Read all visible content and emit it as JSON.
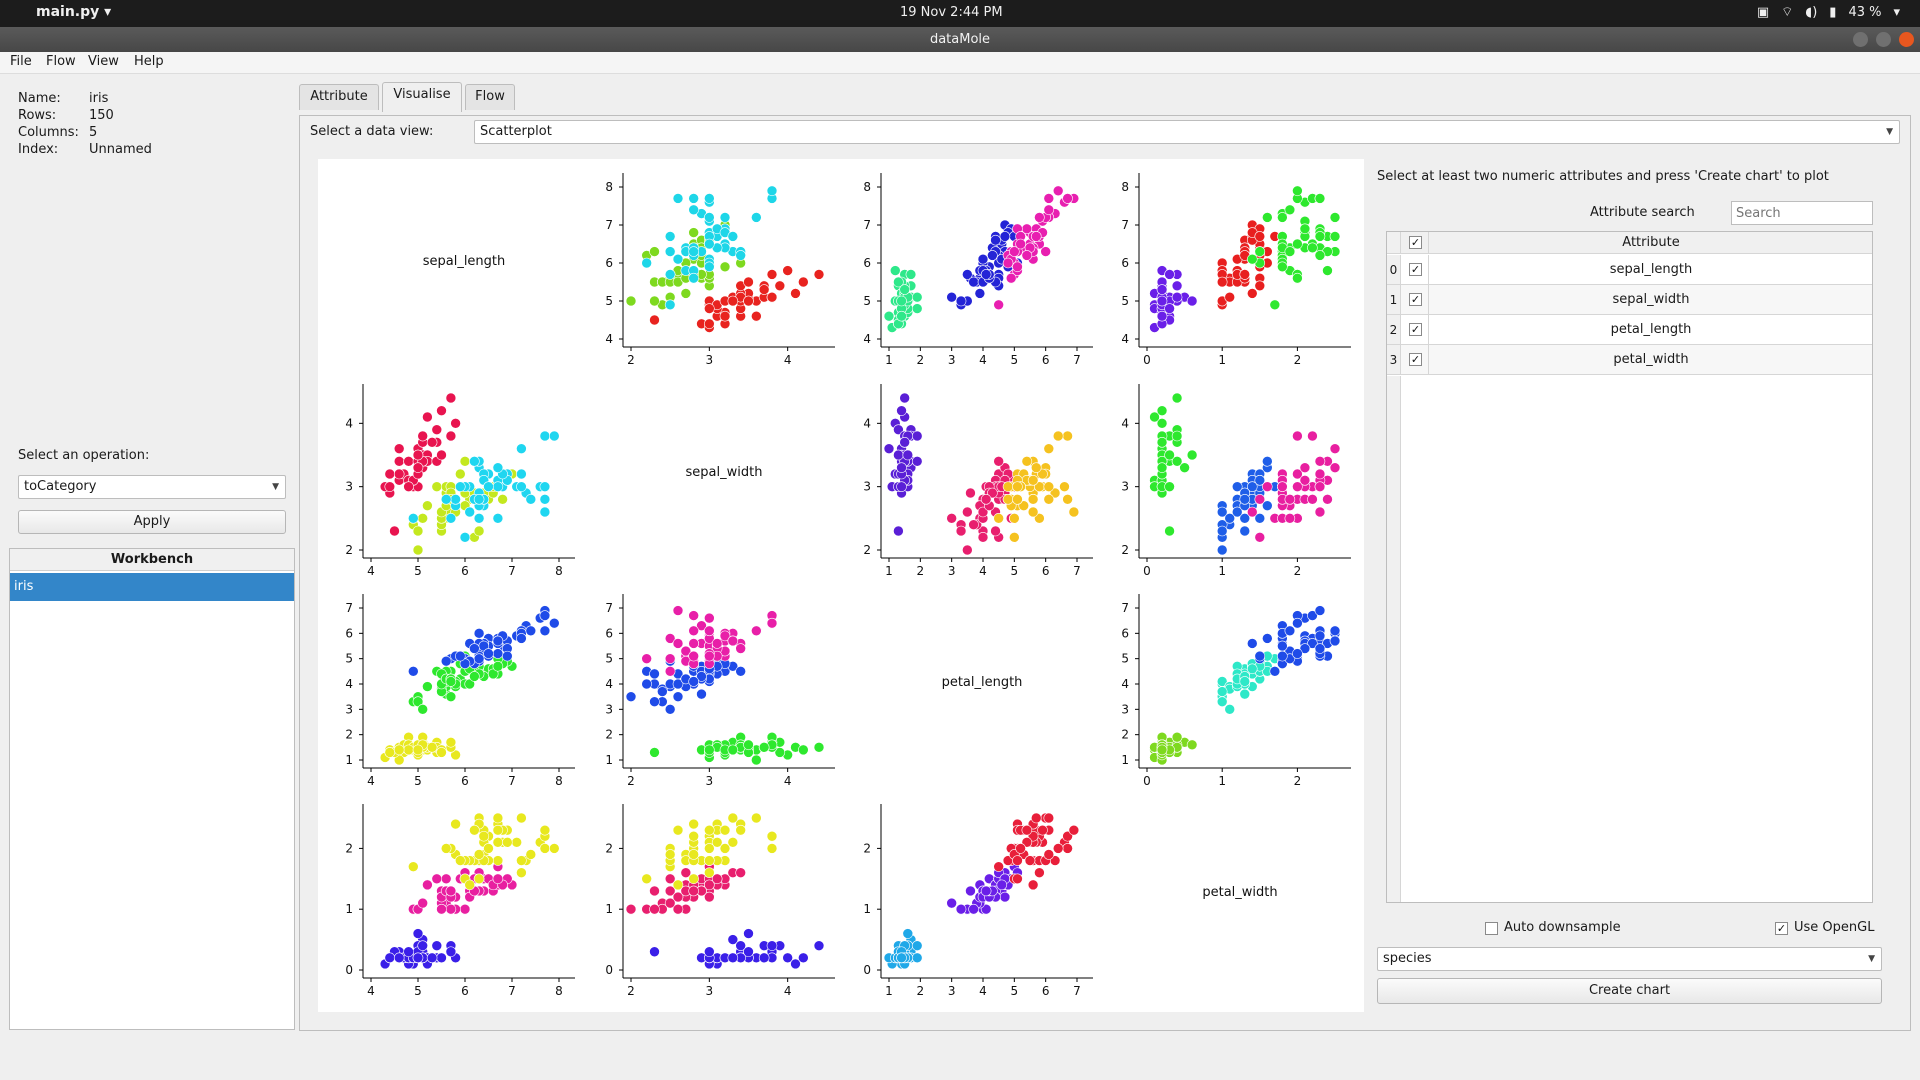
{
  "system_bar": {
    "app_name": "main.py",
    "datetime": "19 Nov  2:44 PM",
    "battery": "43 %"
  },
  "window": {
    "title": "dataMole"
  },
  "menu": [
    "File",
    "Flow",
    "View",
    "Help"
  ],
  "dataset_info": [
    {
      "key": "Name:",
      "value": "iris"
    },
    {
      "key": "Rows:",
      "value": "150"
    },
    {
      "key": "Columns:",
      "value": "5"
    },
    {
      "key": "Index:",
      "value": "Unnamed"
    }
  ],
  "operation": {
    "label": "Select an operation:",
    "selected": "toCategory",
    "apply_label": "Apply"
  },
  "workbench": {
    "title": "Workbench",
    "items": [
      "iris"
    ]
  },
  "tabs": [
    {
      "label": "Attribute",
      "active": false
    },
    {
      "label": "Visualise",
      "active": true
    },
    {
      "label": "Flow",
      "active": false
    }
  ],
  "data_view": {
    "label": "Select a data view:",
    "selected": "Scatterplot"
  },
  "right_panel": {
    "hint": "Select at least two numeric attributes and press 'Create chart' to plot",
    "search_label": "Attribute search",
    "search_placeholder": "Search",
    "table_header": "Attribute",
    "attributes": [
      {
        "index": "0",
        "name": "sepal_length",
        "checked": true
      },
      {
        "index": "1",
        "name": "sepal_width",
        "checked": true
      },
      {
        "index": "2",
        "name": "petal_length",
        "checked": true
      },
      {
        "index": "3",
        "name": "petal_width",
        "checked": true
      }
    ],
    "auto_downsample_label": "Auto downsample",
    "auto_downsample": false,
    "use_opengl_label": "Use OpenGL",
    "use_opengl": true,
    "color_by": "species",
    "create_chart_label": "Create chart"
  },
  "chart_data": {
    "type": "scatter",
    "attributes": [
      "sepal_length",
      "sepal_width",
      "petal_length",
      "petal_width"
    ],
    "color_by": "species",
    "axes": {
      "sepal_length": {
        "ticks": [
          4,
          5,
          6,
          7,
          8
        ],
        "range": [
          4,
          8
        ]
      },
      "sepal_width": {
        "ticks": [
          2,
          3,
          4
        ],
        "range": [
          2,
          4.4
        ]
      },
      "petal_length": {
        "ticks": [
          1,
          2,
          3,
          4,
          5,
          6,
          7
        ],
        "range": [
          1,
          7
        ]
      },
      "petal_width": {
        "ticks": [
          0,
          1,
          2
        ],
        "range": [
          0,
          2.5
        ]
      }
    },
    "samples": {
      "setosa": [
        [
          5.1,
          3.5,
          1.4,
          0.2
        ],
        [
          4.9,
          3.0,
          1.4,
          0.2
        ],
        [
          4.7,
          3.2,
          1.3,
          0.2
        ],
        [
          4.6,
          3.1,
          1.5,
          0.2
        ],
        [
          5.0,
          3.6,
          1.4,
          0.2
        ],
        [
          5.4,
          3.9,
          1.7,
          0.4
        ],
        [
          4.6,
          3.4,
          1.4,
          0.3
        ],
        [
          5.0,
          3.4,
          1.5,
          0.2
        ],
        [
          4.4,
          2.9,
          1.4,
          0.2
        ],
        [
          4.9,
          3.1,
          1.5,
          0.1
        ],
        [
          5.4,
          3.7,
          1.5,
          0.2
        ],
        [
          4.8,
          3.4,
          1.6,
          0.2
        ],
        [
          4.8,
          3.0,
          1.4,
          0.1
        ],
        [
          4.3,
          3.0,
          1.1,
          0.1
        ],
        [
          5.8,
          4.0,
          1.2,
          0.2
        ],
        [
          5.7,
          4.4,
          1.5,
          0.4
        ],
        [
          5.4,
          3.9,
          1.3,
          0.4
        ],
        [
          5.1,
          3.5,
          1.4,
          0.3
        ],
        [
          5.7,
          3.8,
          1.7,
          0.3
        ],
        [
          5.1,
          3.8,
          1.5,
          0.3
        ],
        [
          5.4,
          3.4,
          1.7,
          0.2
        ],
        [
          5.1,
          3.7,
          1.5,
          0.4
        ],
        [
          4.6,
          3.6,
          1.0,
          0.2
        ],
        [
          5.1,
          3.3,
          1.7,
          0.5
        ],
        [
          4.8,
          3.4,
          1.9,
          0.2
        ],
        [
          5.0,
          3.0,
          1.6,
          0.2
        ],
        [
          5.0,
          3.4,
          1.6,
          0.4
        ],
        [
          5.2,
          3.5,
          1.5,
          0.2
        ],
        [
          5.2,
          3.4,
          1.4,
          0.2
        ],
        [
          4.7,
          3.2,
          1.6,
          0.2
        ],
        [
          4.8,
          3.1,
          1.6,
          0.2
        ],
        [
          5.4,
          3.4,
          1.5,
          0.4
        ],
        [
          5.2,
          4.1,
          1.5,
          0.1
        ],
        [
          5.5,
          4.2,
          1.4,
          0.2
        ],
        [
          4.9,
          3.1,
          1.5,
          0.2
        ],
        [
          5.0,
          3.2,
          1.2,
          0.2
        ],
        [
          5.5,
          3.5,
          1.3,
          0.2
        ],
        [
          4.4,
          3.0,
          1.3,
          0.2
        ],
        [
          5.1,
          3.4,
          1.5,
          0.2
        ],
        [
          5.0,
          3.5,
          1.3,
          0.3
        ],
        [
          4.5,
          2.3,
          1.3,
          0.3
        ],
        [
          4.4,
          3.2,
          1.3,
          0.2
        ],
        [
          5.0,
          3.5,
          1.6,
          0.6
        ],
        [
          5.1,
          3.8,
          1.9,
          0.4
        ],
        [
          4.8,
          3.0,
          1.4,
          0.3
        ],
        [
          5.1,
          3.8,
          1.6,
          0.2
        ],
        [
          4.6,
          3.2,
          1.4,
          0.2
        ],
        [
          5.3,
          3.7,
          1.5,
          0.2
        ],
        [
          5.0,
          3.3,
          1.4,
          0.2
        ]
      ],
      "versicolor": [
        [
          7.0,
          3.2,
          4.7,
          1.4
        ],
        [
          6.4,
          3.2,
          4.5,
          1.5
        ],
        [
          6.9,
          3.1,
          4.9,
          1.5
        ],
        [
          5.5,
          2.3,
          4.0,
          1.3
        ],
        [
          6.5,
          2.8,
          4.6,
          1.5
        ],
        [
          5.7,
          2.8,
          4.5,
          1.3
        ],
        [
          6.3,
          3.3,
          4.7,
          1.6
        ],
        [
          4.9,
          2.4,
          3.3,
          1.0
        ],
        [
          6.6,
          2.9,
          4.6,
          1.3
        ],
        [
          5.2,
          2.7,
          3.9,
          1.4
        ],
        [
          5.0,
          2.0,
          3.5,
          1.0
        ],
        [
          5.9,
          3.0,
          4.2,
          1.5
        ],
        [
          6.0,
          2.2,
          4.0,
          1.0
        ],
        [
          6.1,
          2.9,
          4.7,
          1.4
        ],
        [
          5.6,
          2.9,
          3.6,
          1.3
        ],
        [
          6.7,
          3.1,
          4.4,
          1.4
        ],
        [
          5.6,
          3.0,
          4.5,
          1.5
        ],
        [
          5.8,
          2.7,
          4.1,
          1.0
        ],
        [
          6.2,
          2.2,
          4.5,
          1.5
        ],
        [
          5.6,
          2.5,
          3.9,
          1.1
        ],
        [
          5.9,
          3.2,
          4.8,
          1.8
        ],
        [
          6.1,
          2.8,
          4.0,
          1.3
        ],
        [
          6.3,
          2.5,
          4.9,
          1.5
        ],
        [
          6.1,
          2.8,
          4.7,
          1.2
        ],
        [
          6.4,
          2.9,
          4.3,
          1.3
        ],
        [
          6.6,
          3.0,
          4.4,
          1.4
        ],
        [
          6.8,
          2.8,
          4.8,
          1.4
        ],
        [
          6.7,
          3.0,
          5.0,
          1.7
        ],
        [
          6.0,
          2.9,
          4.5,
          1.5
        ],
        [
          5.7,
          2.6,
          3.5,
          1.0
        ],
        [
          5.5,
          2.4,
          3.8,
          1.1
        ],
        [
          5.5,
          2.4,
          3.7,
          1.0
        ],
        [
          5.8,
          2.7,
          3.9,
          1.2
        ],
        [
          6.0,
          2.7,
          5.1,
          1.6
        ],
        [
          5.4,
          3.0,
          4.5,
          1.5
        ],
        [
          6.0,
          3.4,
          4.5,
          1.6
        ],
        [
          6.7,
          3.1,
          4.7,
          1.5
        ],
        [
          6.3,
          2.3,
          4.4,
          1.3
        ],
        [
          5.6,
          3.0,
          4.1,
          1.3
        ],
        [
          5.5,
          2.5,
          4.0,
          1.3
        ],
        [
          5.5,
          2.6,
          4.4,
          1.2
        ],
        [
          6.1,
          3.0,
          4.6,
          1.4
        ],
        [
          5.8,
          2.6,
          4.0,
          1.2
        ],
        [
          5.0,
          2.3,
          3.3,
          1.0
        ],
        [
          5.6,
          2.7,
          4.2,
          1.3
        ],
        [
          5.7,
          3.0,
          4.2,
          1.2
        ],
        [
          5.7,
          2.9,
          4.2,
          1.3
        ],
        [
          6.2,
          2.9,
          4.3,
          1.3
        ],
        [
          5.1,
          2.5,
          3.0,
          1.1
        ],
        [
          5.7,
          2.8,
          4.1,
          1.3
        ]
      ],
      "virginica": [
        [
          6.3,
          3.3,
          6.0,
          2.5
        ],
        [
          5.8,
          2.7,
          5.1,
          1.9
        ],
        [
          7.1,
          3.0,
          5.9,
          2.1
        ],
        [
          6.3,
          2.9,
          5.6,
          1.8
        ],
        [
          6.5,
          3.0,
          5.8,
          2.2
        ],
        [
          7.6,
          3.0,
          6.6,
          2.1
        ],
        [
          4.9,
          2.5,
          4.5,
          1.7
        ],
        [
          7.3,
          2.9,
          6.3,
          1.8
        ],
        [
          6.7,
          2.5,
          5.8,
          1.8
        ],
        [
          7.2,
          3.6,
          6.1,
          2.5
        ],
        [
          6.5,
          3.2,
          5.1,
          2.0
        ],
        [
          6.4,
          2.7,
          5.3,
          1.9
        ],
        [
          6.8,
          3.0,
          5.5,
          2.1
        ],
        [
          5.7,
          2.5,
          5.0,
          2.0
        ],
        [
          5.8,
          2.8,
          5.1,
          2.4
        ],
        [
          6.4,
          3.2,
          5.3,
          2.3
        ],
        [
          6.5,
          3.0,
          5.5,
          1.8
        ],
        [
          7.7,
          3.8,
          6.7,
          2.2
        ],
        [
          7.7,
          2.6,
          6.9,
          2.3
        ],
        [
          6.0,
          2.2,
          5.0,
          1.5
        ],
        [
          6.9,
          3.2,
          5.7,
          2.3
        ],
        [
          5.6,
          2.8,
          4.9,
          2.0
        ],
        [
          7.7,
          2.8,
          6.7,
          2.0
        ],
        [
          6.3,
          2.7,
          4.9,
          1.8
        ],
        [
          6.7,
          3.3,
          5.7,
          2.1
        ],
        [
          7.2,
          3.2,
          6.0,
          1.8
        ],
        [
          6.2,
          2.8,
          4.8,
          1.8
        ],
        [
          6.1,
          3.0,
          4.9,
          1.8
        ],
        [
          6.4,
          2.8,
          5.6,
          2.1
        ],
        [
          7.2,
          3.0,
          5.8,
          1.6
        ],
        [
          7.4,
          2.8,
          6.1,
          1.9
        ],
        [
          7.9,
          3.8,
          6.4,
          2.0
        ],
        [
          6.4,
          2.8,
          5.6,
          2.2
        ],
        [
          6.3,
          2.8,
          5.1,
          1.5
        ],
        [
          6.1,
          2.6,
          5.6,
          1.4
        ],
        [
          7.7,
          3.0,
          6.1,
          2.3
        ],
        [
          6.3,
          3.4,
          5.6,
          2.4
        ],
        [
          6.4,
          3.1,
          5.5,
          1.8
        ],
        [
          6.0,
          3.0,
          4.8,
          1.8
        ],
        [
          6.9,
          3.1,
          5.4,
          2.1
        ],
        [
          6.7,
          3.1,
          5.6,
          2.4
        ],
        [
          6.9,
          3.1,
          5.1,
          2.3
        ],
        [
          6.8,
          3.2,
          5.9,
          2.3
        ],
        [
          6.7,
          3.3,
          5.7,
          2.5
        ],
        [
          6.7,
          3.0,
          5.2,
          2.3
        ],
        [
          6.3,
          2.5,
          5.0,
          1.9
        ],
        [
          6.5,
          3.0,
          5.2,
          2.0
        ],
        [
          6.2,
          3.4,
          5.4,
          2.3
        ],
        [
          5.9,
          3.0,
          5.1,
          1.8
        ]
      ]
    },
    "cell_colors": [
      [
        null,
        [
          "#e8231f",
          "#7ed91f",
          "#1ed6e8"
        ],
        [
          "#2ee88a",
          "#2424d6",
          "#e81fb0"
        ],
        [
          "#6a1fe8",
          "#e81f1f",
          "#2ee82e"
        ]
      ],
      [
        [
          "#e8144f",
          "#c4e81f",
          "#1fd6f0"
        ],
        null,
        [
          "#5a1fd6",
          "#e81f6e",
          "#f5c21f"
        ],
        [
          "#2ee82e",
          "#1f5ee8",
          "#e81fa0"
        ]
      ],
      [
        [
          "#e8e81f",
          "#2ee82e",
          "#1f4be8"
        ],
        [
          "#2ee82e",
          "#1f4be8",
          "#e81fa8"
        ],
        null,
        [
          "#7ed91f",
          "#2ee8c8",
          "#1f4be8"
        ]
      ],
      [
        [
          "#3a1fe8",
          "#e81fa0",
          "#e8e81f"
        ],
        [
          "#3a1fe8",
          "#e81f6e",
          "#e8e81f"
        ],
        [
          "#1fa8e8",
          "#6a1fe8",
          "#e81f3a"
        ],
        null
      ]
    ]
  }
}
